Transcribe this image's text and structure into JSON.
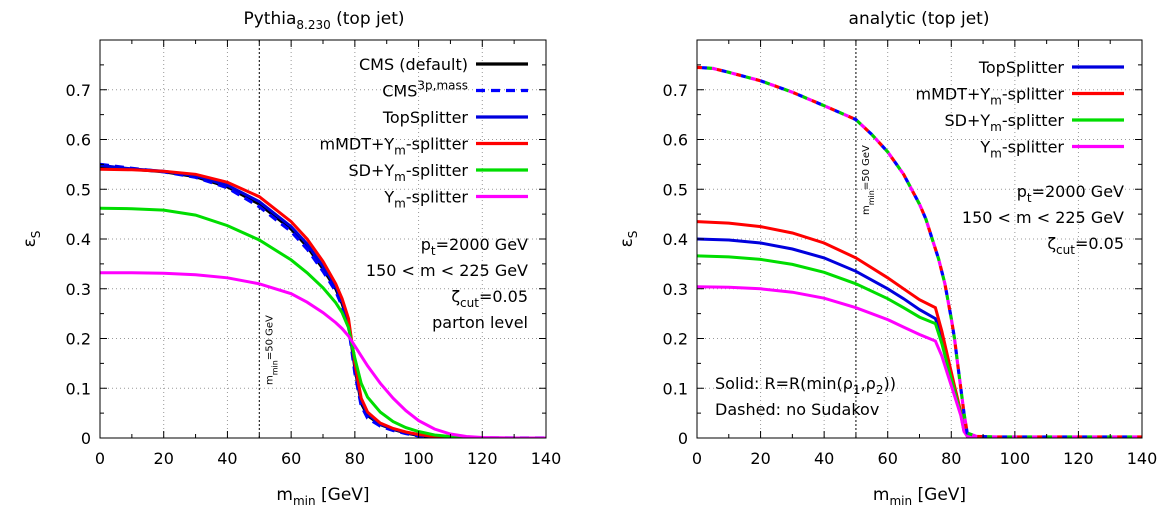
{
  "chart_data": [
    {
      "type": "line",
      "title": "Pythia8.230 (top jet)",
      "title_main": "Pythia",
      "title_version": "8.230",
      "title_tail": " (top jet)",
      "xlabel": "m_min [GeV]",
      "xlabel_main": "m",
      "xlabel_sub": "min",
      "xlabel_tail": " [GeV]",
      "ylabel": "ε_S",
      "ylabel_main": "ε",
      "ylabel_sub": "S",
      "xlim": [
        0,
        140
      ],
      "ylim": [
        0,
        0.8
      ],
      "xticks": [
        0,
        20,
        40,
        60,
        80,
        100,
        120,
        140
      ],
      "yticks": [
        0,
        0.1,
        0.2,
        0.3,
        0.4,
        0.5,
        0.6,
        0.7
      ],
      "ytick_labels": [
        "0",
        "0.1",
        "0.2",
        "0.3",
        "0.4",
        "0.5",
        "0.6",
        "0.7"
      ],
      "grid": true,
      "legend_position": "top-right",
      "vline": {
        "x": 50,
        "label": "m_min=50 GeV",
        "label_main": "m",
        "label_sub": "min",
        "label_tail": "=50 GeV"
      },
      "annotations": [
        {
          "main": "p",
          "sub": "t",
          "tail": "=2000 GeV"
        },
        {
          "main": "150 < m < 225 GeV",
          "sub": "",
          "tail": ""
        },
        {
          "main": "ζ",
          "sub": "cut",
          "tail": "=0.05"
        },
        {
          "main": "parton level",
          "sub": "",
          "tail": ""
        }
      ],
      "series": [
        {
          "name": "CMS (default)",
          "legend_main": "CMS (default)",
          "legend_sub": "",
          "legend_sup": "",
          "legend_tail": "",
          "color": "#000000",
          "dashed": false,
          "dash_colors": [],
          "x": [
            0,
            10,
            20,
            30,
            40,
            50,
            60,
            65,
            70,
            74,
            76,
            78,
            80,
            82,
            84,
            88,
            92,
            96,
            100,
            105,
            110,
            115,
            120,
            130,
            140
          ],
          "y": [
            0.545,
            0.54,
            0.535,
            0.525,
            0.505,
            0.47,
            0.42,
            0.385,
            0.34,
            0.3,
            0.27,
            0.23,
            0.14,
            0.07,
            0.045,
            0.027,
            0.017,
            0.01,
            0.005,
            0.002,
            0.001,
            0,
            0,
            0,
            0
          ]
        },
        {
          "name": "CMS3p,mass",
          "legend_main": "CMS",
          "legend_sub": "",
          "legend_sup": "3p,mass",
          "legend_tail": "",
          "color": "#0000ff",
          "dashed": true,
          "dash_colors": [
            "#0000ff"
          ],
          "x": [
            0,
            10,
            20,
            30,
            40,
            50,
            60,
            65,
            70,
            74,
            76,
            78,
            80,
            82,
            84,
            88,
            92,
            96,
            100,
            105,
            110,
            115,
            120,
            130,
            140
          ],
          "y": [
            0.55,
            0.542,
            0.535,
            0.524,
            0.503,
            0.465,
            0.415,
            0.38,
            0.335,
            0.295,
            0.265,
            0.225,
            0.13,
            0.065,
            0.04,
            0.024,
            0.015,
            0.009,
            0.004,
            0.002,
            0.001,
            0,
            0,
            0,
            0
          ]
        },
        {
          "name": "TopSplitter",
          "legend_main": "TopSplitter",
          "legend_sub": "",
          "legend_sup": "",
          "legend_tail": "",
          "color": "#0000dd",
          "dashed": false,
          "dash_colors": [],
          "x": [
            0,
            10,
            20,
            30,
            40,
            50,
            60,
            65,
            70,
            74,
            76,
            78,
            80,
            82,
            84,
            88,
            92,
            96,
            100,
            105,
            110,
            115,
            120,
            130,
            140
          ],
          "y": [
            0.548,
            0.541,
            0.536,
            0.527,
            0.508,
            0.475,
            0.425,
            0.39,
            0.345,
            0.305,
            0.275,
            0.235,
            0.145,
            0.075,
            0.048,
            0.028,
            0.018,
            0.011,
            0.006,
            0.003,
            0.001,
            0,
            0,
            0,
            0
          ]
        },
        {
          "name": "mMDT+Ym-splitter",
          "legend_main": "mMDT+Y",
          "legend_sub": "m",
          "legend_sup": "",
          "legend_tail": "-splitter",
          "color": "#ff0000",
          "dashed": false,
          "dash_colors": [],
          "x": [
            0,
            10,
            20,
            30,
            40,
            50,
            60,
            65,
            70,
            74,
            76,
            78,
            80,
            82,
            84,
            88,
            92,
            96,
            100,
            105,
            110,
            115,
            120,
            130,
            140
          ],
          "y": [
            0.54,
            0.539,
            0.536,
            0.53,
            0.514,
            0.485,
            0.435,
            0.4,
            0.355,
            0.31,
            0.28,
            0.24,
            0.15,
            0.08,
            0.052,
            0.03,
            0.019,
            0.012,
            0.007,
            0.003,
            0.001,
            0,
            0,
            0,
            0
          ]
        },
        {
          "name": "SD+Ym-splitter",
          "legend_main": "SD+Y",
          "legend_sub": "m",
          "legend_sup": "",
          "legend_tail": "-splitter",
          "color": "#00dd00",
          "dashed": false,
          "dash_colors": [],
          "x": [
            0,
            10,
            20,
            30,
            40,
            50,
            60,
            65,
            70,
            74,
            76,
            78,
            80,
            82,
            84,
            88,
            92,
            96,
            100,
            105,
            110,
            115,
            120,
            130,
            140
          ],
          "y": [
            0.462,
            0.461,
            0.458,
            0.448,
            0.427,
            0.398,
            0.358,
            0.332,
            0.302,
            0.272,
            0.252,
            0.222,
            0.16,
            0.11,
            0.082,
            0.052,
            0.033,
            0.021,
            0.013,
            0.006,
            0.003,
            0.001,
            0,
            0,
            0
          ]
        },
        {
          "name": "Ym-splitter",
          "legend_main": "Y",
          "legend_sub": "m",
          "legend_sup": "",
          "legend_tail": "-splitter",
          "color": "#ff00ff",
          "dashed": false,
          "dash_colors": [],
          "x": [
            0,
            10,
            20,
            30,
            40,
            50,
            60,
            65,
            70,
            74,
            76,
            78,
            80,
            82,
            84,
            88,
            92,
            96,
            100,
            105,
            110,
            115,
            120,
            130,
            140
          ],
          "y": [
            0.332,
            0.332,
            0.331,
            0.328,
            0.322,
            0.31,
            0.29,
            0.273,
            0.252,
            0.232,
            0.22,
            0.205,
            0.185,
            0.165,
            0.145,
            0.11,
            0.08,
            0.055,
            0.035,
            0.018,
            0.008,
            0.003,
            0.001,
            0,
            0
          ]
        }
      ]
    },
    {
      "type": "line",
      "title": "analytic (top jet)",
      "title_main": "analytic (top jet)",
      "title_version": "",
      "title_tail": "",
      "xlabel": "m_min [GeV]",
      "xlabel_main": "m",
      "xlabel_sub": "min",
      "xlabel_tail": " [GeV]",
      "ylabel": "ε_S",
      "ylabel_main": "ε",
      "ylabel_sub": "S",
      "xlim": [
        0,
        140
      ],
      "ylim": [
        0,
        0.8
      ],
      "xticks": [
        0,
        20,
        40,
        60,
        80,
        100,
        120,
        140
      ],
      "yticks": [
        0,
        0.1,
        0.2,
        0.3,
        0.4,
        0.5,
        0.6,
        0.7
      ],
      "ytick_labels": [
        "0",
        "0.1",
        "0.2",
        "0.3",
        "0.4",
        "0.5",
        "0.6",
        "0.7"
      ],
      "grid": true,
      "legend_position": "top-right",
      "vline": {
        "x": 50,
        "label": "m_min=50 GeV",
        "label_main": "m",
        "label_sub": "min",
        "label_tail": "=50 GeV"
      },
      "annotations": [
        {
          "main": "p",
          "sub": "t",
          "tail": "=2000 GeV"
        },
        {
          "main": "150 < m < 225 GeV",
          "sub": "",
          "tail": ""
        },
        {
          "main": "ζ",
          "sub": "cut",
          "tail": "=0.05"
        }
      ],
      "notes": [
        {
          "main": "Solid: R=R(min(ρ",
          "sub1": "1",
          "mid": ",ρ",
          "sub2": "2",
          "tail": "))"
        },
        {
          "main": "Dashed: no Sudakov",
          "sub1": "",
          "mid": "",
          "sub2": "",
          "tail": ""
        }
      ],
      "series": [
        {
          "name": "TopSplitter",
          "legend_main": "TopSplitter",
          "legend_sub": "",
          "legend_tail": "",
          "color": "#0000dd",
          "dashed": false,
          "dash_colors": [],
          "x": [
            0,
            10,
            20,
            30,
            40,
            50,
            60,
            65,
            70,
            75,
            77,
            79,
            81,
            83,
            84,
            85,
            88,
            95,
            110,
            125,
            140
          ],
          "y": [
            0.4,
            0.398,
            0.392,
            0.38,
            0.362,
            0.335,
            0.3,
            0.28,
            0.258,
            0.24,
            0.2,
            0.15,
            0.1,
            0.05,
            0.015,
            0.004,
            0.002,
            0.002,
            0.002,
            0.002,
            0.002
          ]
        },
        {
          "name": "mMDT+Ym-splitter",
          "legend_main": "mMDT+Y",
          "legend_sub": "m",
          "legend_tail": "-splitter",
          "color": "#ff0000",
          "dashed": false,
          "dash_colors": [],
          "x": [
            0,
            10,
            20,
            30,
            40,
            50,
            60,
            65,
            70,
            75,
            77,
            79,
            81,
            83,
            84,
            85,
            88,
            95,
            110,
            125,
            140
          ],
          "y": [
            0.435,
            0.432,
            0.425,
            0.412,
            0.392,
            0.362,
            0.322,
            0.3,
            0.278,
            0.262,
            0.215,
            0.16,
            0.105,
            0.052,
            0.015,
            0.004,
            0.002,
            0.002,
            0.002,
            0.002,
            0.002
          ]
        },
        {
          "name": "SD+Ym-splitter",
          "legend_main": "SD+Y",
          "legend_sub": "m",
          "legend_tail": "-splitter",
          "color": "#00dd00",
          "dashed": false,
          "dash_colors": [],
          "x": [
            0,
            10,
            20,
            30,
            40,
            50,
            60,
            65,
            70,
            75,
            77,
            79,
            81,
            83,
            84,
            85,
            88,
            95,
            110,
            125,
            140
          ],
          "y": [
            0.366,
            0.364,
            0.359,
            0.349,
            0.333,
            0.31,
            0.28,
            0.262,
            0.243,
            0.23,
            0.19,
            0.142,
            0.095,
            0.048,
            0.014,
            0.004,
            0.002,
            0.002,
            0.002,
            0.002,
            0.002
          ]
        },
        {
          "name": "Ym-splitter",
          "legend_main": "Y",
          "legend_sub": "m",
          "legend_tail": "-splitter",
          "color": "#ff00ff",
          "dashed": false,
          "dash_colors": [],
          "x": [
            0,
            10,
            20,
            30,
            40,
            50,
            60,
            65,
            70,
            75,
            77,
            79,
            81,
            83,
            84,
            85,
            88,
            95,
            110,
            125,
            140
          ],
          "y": [
            0.304,
            0.303,
            0.3,
            0.293,
            0.281,
            0.262,
            0.238,
            0.223,
            0.208,
            0.195,
            0.165,
            0.125,
            0.085,
            0.045,
            0.013,
            0.004,
            0.002,
            0.002,
            0.002,
            0.002,
            0.002
          ]
        },
        {
          "name": "no Sudakov (all taggers)",
          "legend_main": "",
          "legend_sub": "",
          "legend_tail": "",
          "color": "#ff0000",
          "dashed": true,
          "dash_colors": [
            "#ff0000",
            "#0000ff",
            "#00cc00",
            "#ff00ff"
          ],
          "x": [
            0,
            5,
            10,
            20,
            30,
            40,
            50,
            55,
            60,
            65,
            70,
            72,
            74,
            76,
            78,
            80,
            81,
            82,
            83,
            84,
            85,
            88,
            95,
            110,
            125,
            140
          ],
          "y": [
            0.745,
            0.743,
            0.735,
            0.718,
            0.695,
            0.668,
            0.64,
            0.61,
            0.575,
            0.53,
            0.47,
            0.44,
            0.4,
            0.36,
            0.31,
            0.24,
            0.2,
            0.15,
            0.1,
            0.05,
            0.01,
            0.003,
            0.002,
            0.002,
            0.002,
            0.002
          ]
        }
      ]
    }
  ]
}
